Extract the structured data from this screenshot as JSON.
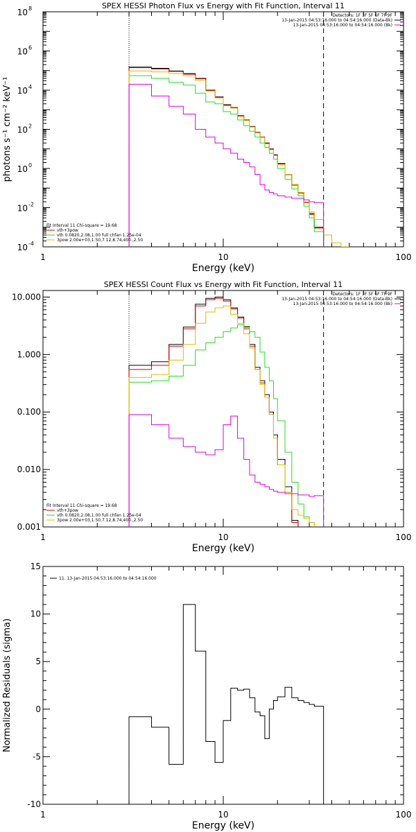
{
  "colors": {
    "black": "#000000",
    "red": "#cc0000",
    "green": "#22dd22",
    "yellow": "#ddbb00",
    "magenta": "#dd00dd"
  },
  "chart_data": [
    {
      "type": "line",
      "title": "SPEX HESSI Photon Flux vs Energy with Fit Function, Interval 11",
      "xlabel": "Energy (keV)",
      "ylabel": "photons s⁻¹ cm⁻² keV⁻¹",
      "xscale": "log",
      "yscale": "log",
      "xlim": [
        1,
        100
      ],
      "ylim": [
        0.0001,
        100000000
      ],
      "xticks": [
        {
          "v": 1,
          "label": "1"
        },
        {
          "v": 10,
          "label": "10"
        },
        {
          "v": 100,
          "label": "100"
        }
      ],
      "yticks": [
        {
          "v": 0.0001,
          "base": "10",
          "exp": "-4"
        },
        {
          "v": 0.01,
          "base": "10",
          "exp": "-2"
        },
        {
          "v": 1,
          "base": "10",
          "exp": "0"
        },
        {
          "v": 100,
          "base": "10",
          "exp": "2"
        },
        {
          "v": 10000,
          "base": "10",
          "exp": "4"
        },
        {
          "v": 1000000,
          "base": "10",
          "exp": "6"
        },
        {
          "v": 100000000,
          "base": "10",
          "exp": "8"
        }
      ],
      "vlines": [
        {
          "x": 3.0,
          "style": "dotted"
        },
        {
          "x": 36.0,
          "style": "dashed"
        }
      ],
      "edges": [
        3.0,
        4.0,
        5.0,
        6.0,
        7.0,
        8.0,
        9.0,
        10.0,
        11.0,
        12.0,
        13.0,
        14.0,
        15.0,
        16.0,
        17.0,
        18.0,
        19.0,
        20.0,
        22.0,
        24.0,
        26.0,
        28.0,
        30.0,
        32.0,
        36.0,
        40.0,
        45.0,
        50.0
      ],
      "legend_right": {
        "lines": [
          "Detectors: 1F 3F 5F 6F 7F 9F",
          "13-Jan-2015 04:53:16.000 to 04:54:16.000 (Data-Bk)",
          "13-Jan-2015 04:53:16.000 to 04:54:16.000 (Bk)"
        ],
        "placement": "top-right"
      },
      "legend_left": {
        "header": "Fit Interval 11   Chi-square = 19.68",
        "lines": [
          "vth+3pow",
          "vth 0.0820,2.08,1.00  full chfan 1.25e-04",
          "3pow 2.00e+03,1.50,7.12,8.74,400.,2.50"
        ],
        "placement": "bottom-left"
      },
      "series": [
        {
          "color": "black",
          "values": [
            150000,
            130000,
            95000,
            70000,
            40000,
            10000,
            4500,
            1800,
            1300,
            500,
            300,
            140,
            70,
            40,
            20,
            10,
            5,
            1.8,
            0.5,
            0.15,
            0.06,
            0.02,
            0.005,
            0.001,
            0.0001,
            null,
            null
          ]
        },
        {
          "color": "red",
          "values": [
            140000,
            120000,
            90000,
            65000,
            38000,
            9500,
            4300,
            1700,
            1250,
            480,
            290,
            135,
            68,
            39,
            19,
            9.5,
            4.8,
            1.7,
            0.48,
            0.14,
            0.055,
            0.018,
            0.0045,
            0.0009,
            null,
            null,
            null
          ]
        },
        {
          "color": "green",
          "values": [
            55000,
            40000,
            25000,
            18000,
            7000,
            2500,
            2000,
            800,
            600,
            300,
            150,
            80,
            40,
            20,
            12,
            6,
            3,
            1.0,
            0.28,
            0.09,
            0.04,
            0.012,
            0.003,
            0.0006,
            null,
            null,
            null
          ]
        },
        {
          "color": "yellow",
          "values": [
            95000,
            85000,
            70000,
            55000,
            32000,
            9000,
            4000,
            1600,
            1200,
            450,
            280,
            130,
            65,
            38,
            18,
            9,
            4.5,
            1.6,
            0.5,
            0.15,
            0.06,
            0.02,
            0.006,
            0.0025,
            0.0004,
            0.00016,
            0.0001
          ]
        },
        {
          "color": "magenta",
          "values": [
            20000,
            5000,
            1500,
            600,
            100,
            40,
            20,
            10,
            6,
            3,
            2,
            1.2,
            0.5,
            0.15,
            0.08,
            0.06,
            0.05,
            0.04,
            0.035,
            0.03,
            0.03,
            0.025,
            0.02,
            0.018,
            null,
            null,
            null
          ]
        }
      ]
    },
    {
      "type": "line",
      "title": "SPEX HESSI Count Flux vs Energy with Fit Function, Interval 11",
      "xlabel": "Energy (keV)",
      "ylabel": "",
      "xscale": "log",
      "yscale": "log",
      "xlim": [
        1,
        100
      ],
      "ylim": [
        0.001,
        13
      ],
      "xticks": [
        {
          "v": 1,
          "label": "1"
        },
        {
          "v": 10,
          "label": "10"
        },
        {
          "v": 100,
          "label": "100"
        }
      ],
      "yticks": [
        {
          "v": 0.001,
          "label": "0.001"
        },
        {
          "v": 0.01,
          "label": "0.010"
        },
        {
          "v": 0.1,
          "label": "0.100"
        },
        {
          "v": 1,
          "label": "1.000"
        },
        {
          "v": 10,
          "label": "10.000"
        }
      ],
      "vlines": [
        {
          "x": 3.0,
          "style": "dotted"
        },
        {
          "x": 36.0,
          "style": "dashed"
        }
      ],
      "edges": [
        3.0,
        4.0,
        5.0,
        6.0,
        7.0,
        8.0,
        9.0,
        10.0,
        11.0,
        12.0,
        13.0,
        14.0,
        15.0,
        16.0,
        17.0,
        18.0,
        19.0,
        20.0,
        22.0,
        24.0,
        26.0,
        28.0,
        30.0,
        32.0,
        36.0
      ],
      "legend_right": {
        "lines": [
          "Detectors: 1F 3F 5F 6F 7F 9F",
          "13-Jan-2015 04:53:16.000 to 04:54:16.000 (Data-Bk)",
          "13-Jan-2015 04:53:16.000 to 04:54:16.000 (Bk)"
        ],
        "placement": "top-right"
      },
      "legend_left": {
        "header": "Fit Interval 11   Chi-square = 19.68",
        "lines": [
          "vth+3pow",
          "vth 0.0820,2.08,1.00  full chfan 1.25e-04",
          "3pow 2.00e+03,1.50,7.12,8.74,400.,2.50"
        ],
        "placement": "bottom-left"
      },
      "series": [
        {
          "color": "black",
          "values": [
            0.65,
            0.75,
            1.5,
            3.0,
            7.5,
            9.5,
            10.0,
            9.0,
            6.5,
            4.5,
            3.0,
            1.5,
            0.6,
            0.35,
            0.2,
            0.1,
            0.04,
            0.015,
            0.005,
            0.0013,
            null,
            null,
            null,
            null
          ]
        },
        {
          "color": "red",
          "values": [
            0.55,
            0.65,
            1.4,
            2.8,
            7.0,
            9.0,
            9.5,
            8.5,
            6.2,
            4.3,
            2.8,
            1.4,
            0.55,
            0.32,
            0.18,
            0.09,
            0.035,
            0.012,
            0.004,
            0.0012,
            null,
            null,
            null,
            null
          ]
        },
        {
          "color": "green",
          "values": [
            0.33,
            0.35,
            0.42,
            0.65,
            1.2,
            1.6,
            2.0,
            2.5,
            2.9,
            3.3,
            3.1,
            2.5,
            2.0,
            1.1,
            0.6,
            0.35,
            0.17,
            0.07,
            0.02,
            0.006,
            0.0025,
            0.0015,
            0.0012,
            null
          ]
        },
        {
          "color": "yellow",
          "values": [
            0.4,
            0.45,
            0.8,
            1.5,
            3.5,
            5.5,
            6.5,
            7.0,
            5.0,
            3.5,
            2.3,
            1.3,
            0.55,
            0.3,
            0.18,
            0.09,
            0.035,
            0.012,
            0.004,
            0.002,
            0.0016,
            0.0014,
            0.0012,
            null
          ]
        },
        {
          "color": "magenta",
          "values": [
            0.09,
            0.06,
            0.035,
            0.025,
            0.02,
            0.018,
            0.022,
            0.06,
            0.085,
            0.035,
            0.015,
            0.008,
            0.006,
            0.0055,
            0.005,
            0.0045,
            0.0042,
            0.004,
            0.0038,
            0.0038,
            0.0036,
            0.0036,
            0.0034,
            0.0035,
            null
          ]
        }
      ]
    },
    {
      "type": "line",
      "title": "",
      "xlabel": "Energy (keV)",
      "ylabel": "Normalized Residuals (sigma)",
      "xscale": "log",
      "yscale": "linear",
      "xlim": [
        1,
        100
      ],
      "ylim": [
        -10,
        15
      ],
      "xticks": [
        {
          "v": 1,
          "label": "1"
        },
        {
          "v": 10,
          "label": "10"
        },
        {
          "v": 100,
          "label": "100"
        }
      ],
      "yticks": [
        {
          "v": -10,
          "label": "-10"
        },
        {
          "v": -5,
          "label": "-5"
        },
        {
          "v": 0,
          "label": "0"
        },
        {
          "v": 5,
          "label": "5"
        },
        {
          "v": 10,
          "label": "10"
        },
        {
          "v": 15,
          "label": "15"
        }
      ],
      "legend": {
        "line": "11. 13-Jan-2015 04:53:16.000 to 04:54:16.000",
        "placement": "top-left"
      },
      "edges": [
        3.0,
        4.0,
        5.0,
        6.0,
        7.0,
        8.0,
        9.0,
        10.0,
        11.0,
        12.0,
        13.0,
        14.0,
        15.0,
        16.0,
        17.0,
        18.0,
        19.0,
        20.0,
        22.0,
        24.0,
        26.0,
        28.0,
        30.0,
        32.0,
        36.0
      ],
      "series": [
        {
          "color": "black",
          "values": [
            -0.8,
            -1.9,
            -5.8,
            11.0,
            6.1,
            -3.4,
            -5.6,
            -1.2,
            2.2,
            2.0,
            2.1,
            1.2,
            -0.3,
            -0.7,
            -3.1,
            0.0,
            0.9,
            1.3,
            2.3,
            1.2,
            0.9,
            0.7,
            0.5,
            0.3
          ]
        }
      ]
    }
  ]
}
